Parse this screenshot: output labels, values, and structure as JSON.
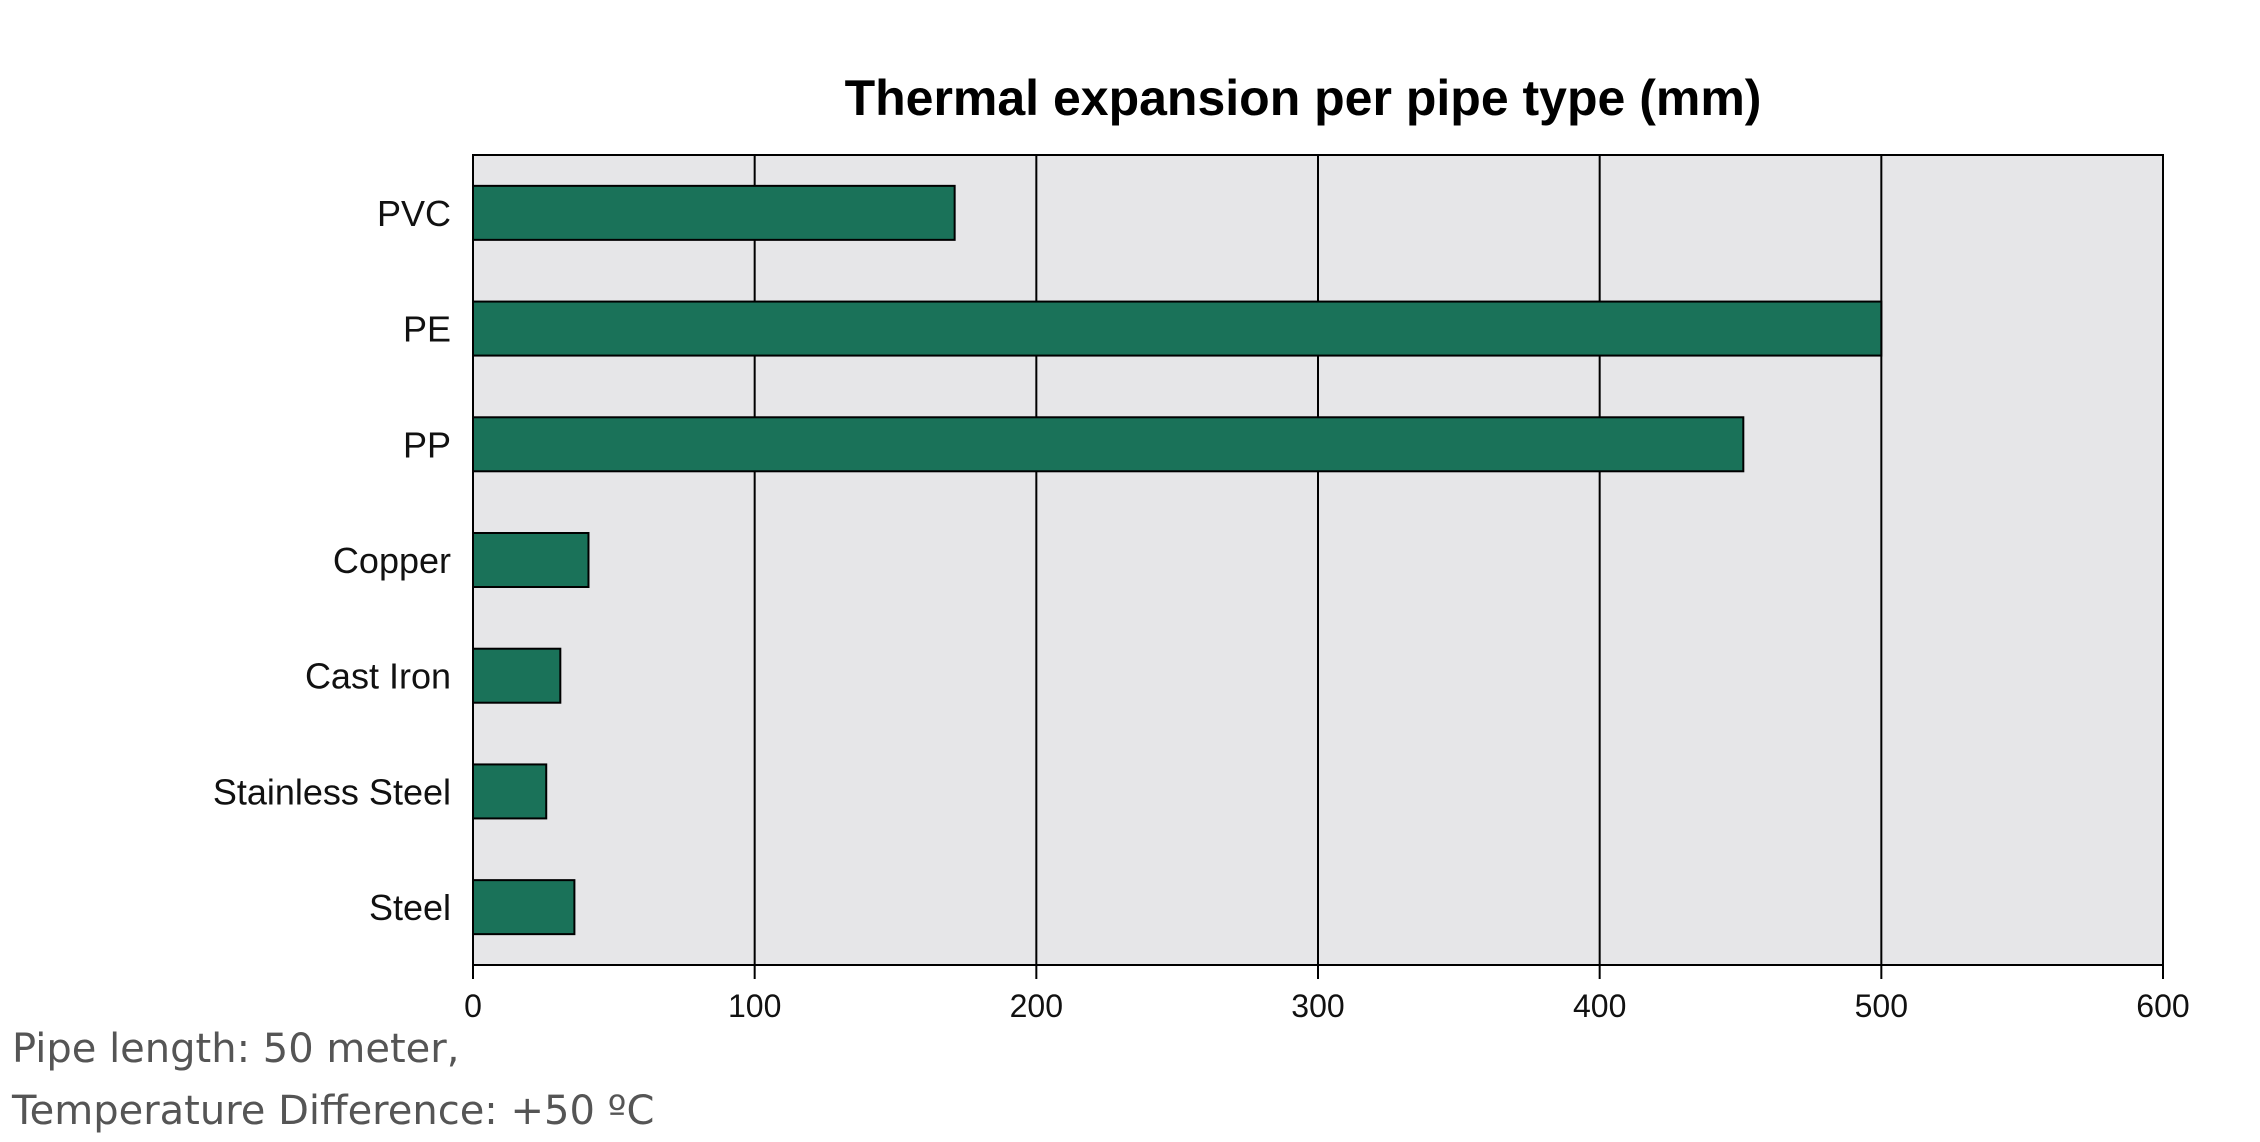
{
  "chart_data": {
    "type": "bar",
    "orientation": "horizontal",
    "title": "Thermal expansion per pipe type (mm)",
    "categories": [
      "PVC",
      "PE",
      "PP",
      "Copper",
      "Cast Iron",
      "Stainless Steel",
      "Steel"
    ],
    "values": [
      171,
      500,
      451,
      41,
      31,
      26,
      36
    ],
    "xlim": [
      0,
      600
    ],
    "xticks": [
      0,
      100,
      200,
      300,
      400,
      500,
      600
    ],
    "grid": true,
    "bar_color": "#1a7259",
    "plot_background": "#e6e6e8"
  },
  "footnote": {
    "line1": "Pipe length: 50 meter,",
    "line2": "Temperature Difference: +50 ºC"
  }
}
